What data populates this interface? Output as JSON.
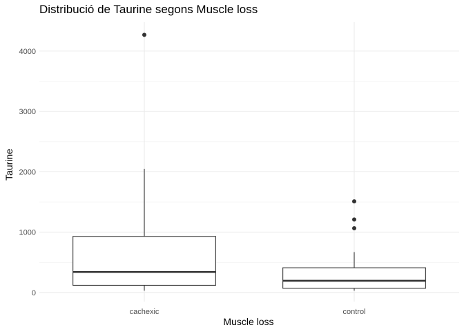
{
  "chart_data": {
    "type": "boxplot",
    "title": "Distribució de Taurine segons Muscle loss",
    "xlabel": "Muscle loss",
    "ylabel": "Taurine",
    "ylim": [
      -150,
      4480
    ],
    "yticks": [
      0,
      1000,
      2000,
      3000,
      4000
    ],
    "grid": true,
    "categories": [
      "cachexic",
      "control"
    ],
    "boxes": [
      {
        "category": "cachexic",
        "whisker_low": 30,
        "q1": 120,
        "median": 340,
        "q3": 930,
        "whisker_high": 2050,
        "outliers": [
          4270
        ]
      },
      {
        "category": "control",
        "whisker_low": 30,
        "q1": 70,
        "median": 195,
        "q3": 410,
        "whisker_high": 670,
        "outliers": [
          1065,
          1210,
          1510
        ]
      }
    ]
  }
}
